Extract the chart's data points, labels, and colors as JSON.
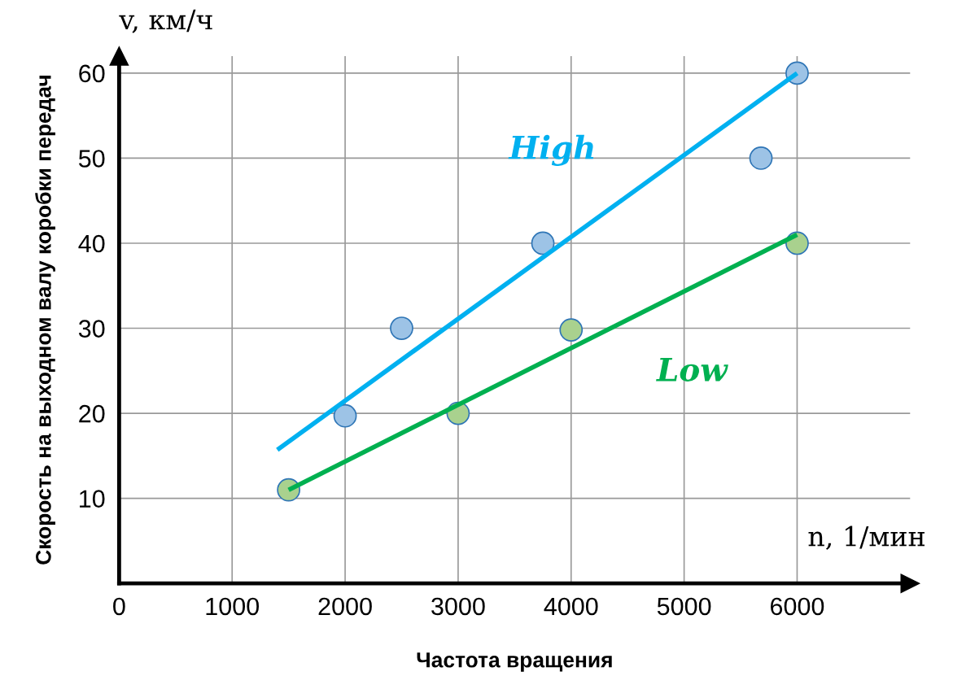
{
  "chart_data": {
    "type": "scatter",
    "xlabel": "Частота вращения",
    "ylabel": "Скорость на выходном валу коробки передач",
    "annotations": [
      "v, км/ч",
      "n, 1/мин"
    ],
    "xlim": [
      0,
      7000
    ],
    "ylim": [
      0,
      62
    ],
    "xticks": [
      0,
      1000,
      2000,
      3000,
      4000,
      5000,
      6000
    ],
    "yticks": [
      10,
      20,
      30,
      40,
      50,
      60
    ],
    "grid": true,
    "series": [
      {
        "marker": "circle",
        "color": "#9dc3e6",
        "x": [
          2000,
          2500,
          3750,
          5680,
          6000
        ],
        "values": [
          19.7,
          30,
          40,
          50,
          60
        ]
      },
      {
        "marker": "circle",
        "color": "#a9d18e",
        "x": [
          1500,
          3000,
          4000,
          6000
        ],
        "values": [
          11,
          20,
          29.8,
          40
        ]
      },
      {
        "type": "line",
        "marker": "none",
        "name": "High",
        "color": "#00b0f0",
        "x": [
          1400,
          6000
        ],
        "values": [
          15.7,
          60
        ]
      },
      {
        "type": "line",
        "marker": "none",
        "name": "Low",
        "color": "#00b050",
        "x": [
          1500,
          6000
        ],
        "values": [
          11,
          41
        ]
      }
    ]
  }
}
